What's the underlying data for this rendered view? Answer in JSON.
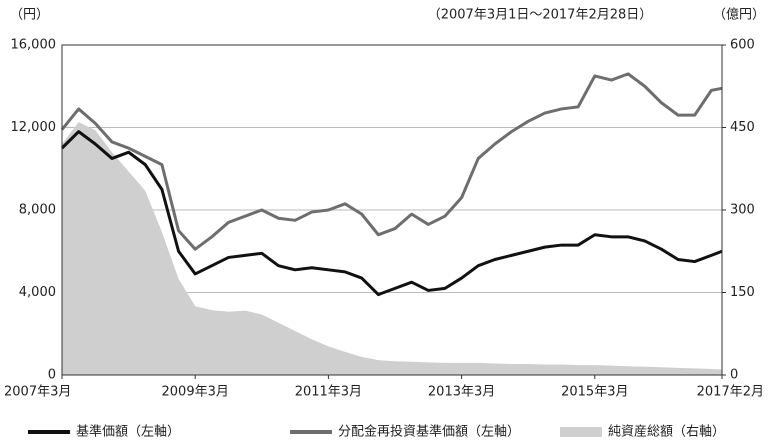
{
  "chart_data": {
    "type": "line",
    "subtitle": "（2007年3月1日～2017年2月28日）",
    "y_label": "（円）",
    "y2_label": "（億円）",
    "x": [
      2007.17,
      2007.42,
      2007.67,
      2007.92,
      2008.17,
      2008.42,
      2008.67,
      2008.92,
      2009.17,
      2009.42,
      2009.67,
      2009.92,
      2010.17,
      2010.42,
      2010.67,
      2010.92,
      2011.17,
      2011.42,
      2011.67,
      2011.92,
      2012.17,
      2012.42,
      2012.67,
      2012.92,
      2013.17,
      2013.42,
      2013.67,
      2013.92,
      2014.17,
      2014.42,
      2014.67,
      2014.92,
      2015.17,
      2015.42,
      2015.67,
      2015.92,
      2016.17,
      2016.42,
      2016.67,
      2016.92,
      2017.08
    ],
    "series": [
      {
        "name": "純資産総額（右軸）",
        "color": "#cfcfcf",
        "type": "area",
        "axis": "y2",
        "values": [
          420,
          460,
          445,
          405,
          370,
          335,
          260,
          175,
          125,
          118,
          115,
          117,
          110,
          95,
          80,
          65,
          52,
          42,
          33,
          27,
          25,
          24,
          23,
          22,
          22,
          22,
          21,
          20,
          20,
          19,
          19,
          18,
          18,
          17,
          16,
          15,
          14,
          13,
          12,
          11,
          10
        ]
      },
      {
        "name": "分配金再投資基準価額（左軸）",
        "color": "#6e6e6e",
        "type": "line",
        "values": [
          11900,
          12900,
          12200,
          11300,
          11000,
          10600,
          10200,
          7000,
          6100,
          6700,
          7400,
          7700,
          8000,
          7600,
          7500,
          7900,
          8000,
          8300,
          7800,
          6800,
          7100,
          7800,
          7300,
          7700,
          8600,
          10500,
          11200,
          11800,
          12300,
          12700,
          12900,
          13000,
          14500,
          14300,
          14600,
          14000,
          13200,
          12600,
          12600,
          13800,
          13900
        ]
      },
      {
        "name": "基準価額（左軸）",
        "color": "#111111",
        "type": "line",
        "values": [
          11000,
          11800,
          11200,
          10500,
          10800,
          10200,
          9000,
          6000,
          4900,
          5300,
          5700,
          5800,
          5900,
          5300,
          5100,
          5200,
          5100,
          5000,
          4700,
          3900,
          4200,
          4500,
          4100,
          4200,
          4700,
          5300,
          5600,
          5800,
          6000,
          6200,
          6300,
          6300,
          6800,
          6700,
          6700,
          6500,
          6100,
          5600,
          5500,
          5800,
          6000
        ]
      }
    ],
    "xlim": [
      2007.17,
      2017.08
    ],
    "xticks": [
      {
        "value": 2007.17,
        "label": "2007年3月"
      },
      {
        "value": 2009.17,
        "label": "2009年3月"
      },
      {
        "value": 2011.17,
        "label": "2011年3月"
      },
      {
        "value": 2013.17,
        "label": "2013年3月"
      },
      {
        "value": 2015.17,
        "label": "2015年3月"
      },
      {
        "value": 2017.08,
        "label": "2017年2月"
      }
    ],
    "ylim": [
      0,
      16000
    ],
    "yticks": [
      0,
      {
        "value": 4000,
        "label": "4,000"
      },
      {
        "value": 8000,
        "label": "8,000"
      },
      {
        "value": 12000,
        "label": "12,000"
      },
      {
        "value": 16000,
        "label": "16,000"
      }
    ],
    "y2lim": [
      0,
      600
    ],
    "y2ticks": [
      0,
      150,
      300,
      450,
      600
    ],
    "grid": true,
    "legend": "bottom"
  }
}
